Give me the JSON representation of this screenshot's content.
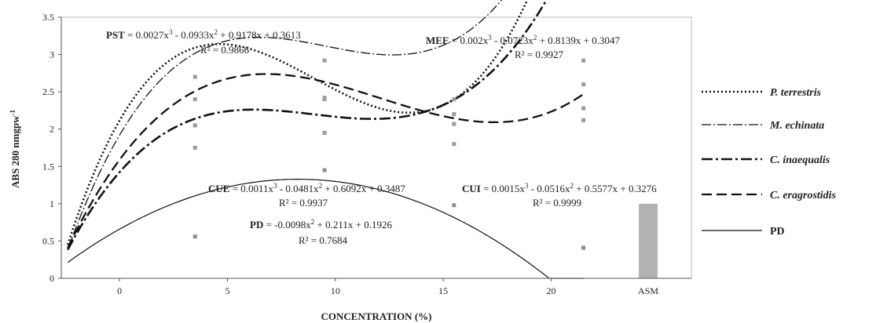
{
  "chart_data": {
    "type": "line",
    "xlabel": "CONCENTRATION (%)",
    "ylabel": "ABS 280 nmgpw",
    "ylabel_sup": "-1",
    "xlim": [
      -2.7,
      26.5
    ],
    "ylim": [
      0,
      3.5
    ],
    "x_ticks": [
      0,
      5,
      10,
      15,
      20
    ],
    "y_ticks": [
      0,
      0.5,
      1,
      1.5,
      2,
      2.5,
      3,
      3.5
    ],
    "x_tick_labels": [
      "0",
      "5",
      "10",
      "15",
      "20"
    ],
    "y_tick_labels": [
      "0",
      "0.5",
      "1",
      "1.5",
      "2",
      "2.5",
      "3",
      "3.5"
    ],
    "category_label": "ASM",
    "reference_bar": {
      "x": 24.5,
      "value": 1.0,
      "color": "#b3b3b3"
    },
    "series": [
      {
        "name": "P. terrestris",
        "key": "pst",
        "dash": "2,3",
        "stroke_width": 2.6,
        "color": "#111111",
        "coef": [
          0.0027,
          -0.0933,
          0.9178,
          0.3613
        ],
        "x_offset": 2.5,
        "points": [
          [
            3.5,
            2.7
          ],
          [
            9.5,
            2.4
          ],
          [
            15.5,
            2.07
          ],
          [
            21.5,
            2.6
          ]
        ],
        "marker_color": "#9a9a9a"
      },
      {
        "name": "M. echinata",
        "key": "mee",
        "dash": "12,3,2,3",
        "stroke_width": 1.3,
        "color": "#111111",
        "coef": [
          0.002,
          -0.0723,
          0.8139,
          0.3047
        ],
        "x_offset": 2.5,
        "points": [
          [
            3.5,
            2.4
          ],
          [
            9.5,
            2.92
          ],
          [
            15.5,
            2.4
          ],
          [
            21.5,
            2.92
          ]
        ],
        "marker_color": "#9a9a9a"
      },
      {
        "name": "C. inaequalis",
        "key": "cui",
        "dash": "14,4,3,4",
        "stroke_width": 2.6,
        "color": "#111111",
        "coef": [
          0.0015,
          -0.0516,
          0.5577,
          0.3276
        ],
        "x_offset": 2.5,
        "points": [
          [
            3.5,
            1.75
          ],
          [
            9.5,
            1.95
          ],
          [
            15.5,
            1.8
          ],
          [
            21.5,
            2.12
          ]
        ],
        "marker_color": "#9a9a9a"
      },
      {
        "name": "C. eragrostidis",
        "key": "cue",
        "dash": "13,6",
        "stroke_width": 2.3,
        "color": "#111111",
        "coef": [
          0.0011,
          -0.0481,
          0.6092,
          0.3487
        ],
        "x_offset": 2.5,
        "points": [
          [
            3.5,
            2.05
          ],
          [
            9.5,
            2.42
          ],
          [
            15.5,
            2.2
          ],
          [
            21.5,
            2.28
          ]
        ],
        "marker_color": "#9a9a9a"
      },
      {
        "name": "PD",
        "key": "pd",
        "dash": "",
        "stroke_width": 1.2,
        "color": "#111111",
        "coef": [
          0,
          -0.0098,
          0.211,
          0.1926
        ],
        "x_offset": 2.5,
        "points": [
          [
            3.5,
            0.56
          ],
          [
            9.5,
            1.45
          ],
          [
            15.5,
            0.98
          ],
          [
            21.5,
            0.41
          ]
        ],
        "marker_color": "#8c8c8c"
      }
    ],
    "annotations": [
      {
        "key": "pst",
        "name": "PST",
        "equation": " = 0.0027x",
        "rest": " - 0.0933x",
        "rest2": " + 0.9178x + 0.3613",
        "r2": "R² = 0.9866"
      },
      {
        "key": "mee",
        "name": "MEE",
        "equation": " = 0.002x",
        "rest": " - 0.0723x",
        "rest2": " + 0.8139x + 0.3047",
        "r2": "R² = 0.9927"
      },
      {
        "key": "cue",
        "name": "CUE",
        "equation": " = 0.0011x",
        "rest": " - 0.0481x",
        "rest2": " + 0.6092x + 0.3487",
        "r2": "R² = 0.9937"
      },
      {
        "key": "cui",
        "name": "CUI",
        "equation": " = 0.0015x",
        "rest": " - 0.0516x",
        "rest2": " + 0.5577x + 0.3276",
        "r2": "R² = 0.9999"
      },
      {
        "key": "pd",
        "name": "PD",
        "equation": " = -0.0098x",
        "rest": " + 0.211x + 0.1926",
        "rest2": "",
        "r2": "R² = 0.7684"
      }
    ],
    "legend_position": "right",
    "grid": false
  }
}
